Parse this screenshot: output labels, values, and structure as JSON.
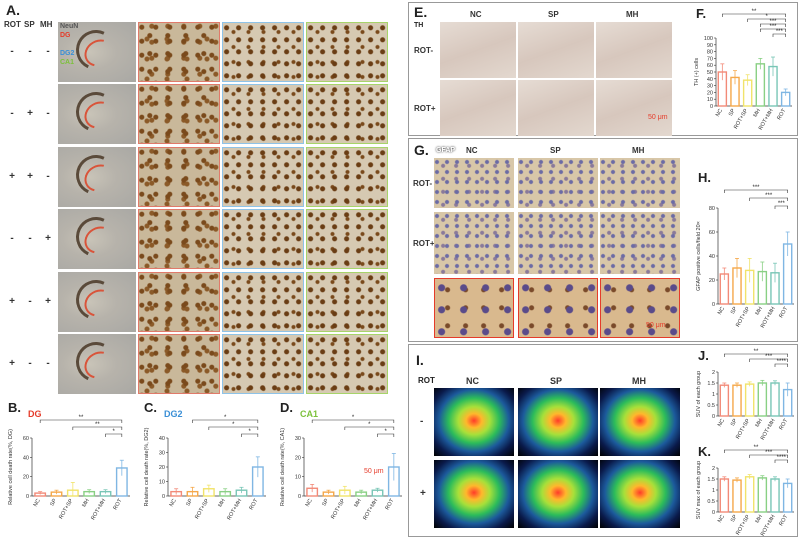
{
  "panelA": {
    "label": "A.",
    "col_headers": [
      "ROT",
      "SP",
      "MH"
    ],
    "rows": [
      {
        "rot": "-",
        "sp": "-",
        "mh": "-"
      },
      {
        "rot": "-",
        "sp": "+",
        "mh": "-"
      },
      {
        "rot": "+",
        "sp": "+",
        "mh": "-"
      },
      {
        "rot": "-",
        "sp": "-",
        "mh": "+"
      },
      {
        "rot": "+",
        "sp": "-",
        "mh": "+"
      },
      {
        "rot": "+",
        "sp": "-",
        "mh": "-"
      }
    ],
    "legend": [
      "NeuN",
      "DG",
      "DG2",
      "CA1"
    ],
    "scale": "50 μm",
    "colors": {
      "DG": "#e53b2a",
      "DG2": "#3a8fd6",
      "CA1": "#7cc13b",
      "NeuN": "#555555"
    }
  },
  "panelE": {
    "label": "E.",
    "stain": "TH",
    "cols": [
      "NC",
      "SP",
      "MH"
    ],
    "rows": [
      "ROT-",
      "ROT+"
    ],
    "scale": "50 μm"
  },
  "panelG": {
    "label": "G.",
    "stain": "GFAP",
    "cols": [
      "NC",
      "SP",
      "MH"
    ],
    "rows": [
      "ROT-",
      "ROT+"
    ],
    "scale": "50 μm"
  },
  "panelI": {
    "label": "I.",
    "row_header": "ROT",
    "cols": [
      "NC",
      "SP",
      "MH"
    ],
    "rows": [
      "-",
      "+"
    ]
  },
  "chart_data": [
    {
      "id": "B",
      "label": "B.",
      "title": "DG",
      "title_color": "#e53b2a",
      "type": "bar",
      "categories": [
        "NC",
        "SP",
        "ROT+SP",
        "MH",
        "ROT+MH",
        "ROT"
      ],
      "values": [
        3,
        4,
        6,
        4.5,
        4.5,
        29
      ],
      "errors": [
        1.5,
        2,
        8,
        2,
        2,
        8
      ],
      "ylabel": "Relative cell death rate(%, DG)",
      "ylim": [
        0,
        60
      ],
      "yticks": [
        0,
        20,
        40,
        60
      ],
      "sig": [
        {
          "from": 0,
          "to": 5,
          "label": "**"
        },
        {
          "from": 2,
          "to": 5,
          "label": "**"
        },
        {
          "from": 4,
          "to": 5,
          "label": "*"
        }
      ]
    },
    {
      "id": "C",
      "label": "C.",
      "title": "DG2",
      "title_color": "#3a8fd6",
      "type": "bar",
      "categories": [
        "NC",
        "SP",
        "ROT+SP",
        "MH",
        "ROT+MH",
        "ROT"
      ],
      "values": [
        3,
        3,
        5,
        3,
        4,
        20
      ],
      "errors": [
        2,
        3,
        2.5,
        2,
        2,
        7
      ],
      "ylabel": "Relative cell death rate(%, DG2)",
      "ylim": [
        0,
        40
      ],
      "yticks": [
        0,
        10,
        20,
        30,
        40
      ],
      "sig": [
        {
          "from": 1,
          "to": 5,
          "label": "*"
        },
        {
          "from": 2,
          "to": 5,
          "label": "*"
        },
        {
          "from": 4,
          "to": 5,
          "label": "*"
        }
      ]
    },
    {
      "id": "D",
      "label": "D.",
      "title": "CA1",
      "title_color": "#7cc13b",
      "type": "bar",
      "categories": [
        "NC",
        "SP",
        "ROT+SP",
        "MH",
        "ROT+MH",
        "ROT"
      ],
      "values": [
        4,
        2,
        3,
        2,
        3,
        15
      ],
      "errors": [
        2,
        1,
        2,
        1,
        1,
        7
      ],
      "ylabel": "Relative cell death rate(%, CA1)",
      "ylim": [
        0,
        30
      ],
      "yticks": [
        0,
        10,
        20,
        30
      ],
      "sig": [
        {
          "from": 0,
          "to": 5,
          "label": "*"
        },
        {
          "from": 2,
          "to": 5,
          "label": "*"
        },
        {
          "from": 4,
          "to": 5,
          "label": "*"
        }
      ]
    },
    {
      "id": "F",
      "label": "F.",
      "title": "",
      "type": "bar",
      "categories": [
        "NC",
        "SP",
        "ROT+SP",
        "MH",
        "ROT+MH",
        "ROT"
      ],
      "values": [
        50,
        42,
        38,
        62,
        58,
        20
      ],
      "errors": [
        12,
        10,
        8,
        8,
        14,
        5
      ],
      "ylabel": "TH (+) cells",
      "ylim": [
        0,
        100
      ],
      "yticks": [
        0,
        10,
        20,
        30,
        40,
        50,
        60,
        70,
        80,
        90,
        100
      ],
      "sig": [
        {
          "from": 0,
          "to": 5,
          "label": "**"
        },
        {
          "from": 2,
          "to": 5,
          "label": "*"
        },
        {
          "from": 3,
          "to": 5,
          "label": "***"
        },
        {
          "from": 3,
          "to": 5,
          "label": "***"
        },
        {
          "from": 4,
          "to": 5,
          "label": "***"
        }
      ]
    },
    {
      "id": "H",
      "label": "H.",
      "title": "",
      "type": "bar",
      "categories": [
        "NC",
        "SP",
        "ROT+SP",
        "MH",
        "ROT+MH",
        "ROT"
      ],
      "values": [
        25,
        30,
        28,
        27,
        26,
        50
      ],
      "errors": [
        5,
        8,
        10,
        8,
        8,
        10
      ],
      "ylabel": "GFAP positive cells/field 20×",
      "ylim": [
        0,
        80
      ],
      "yticks": [
        0,
        20,
        40,
        60,
        80
      ],
      "sig": [
        {
          "from": 0,
          "to": 5,
          "label": "***"
        },
        {
          "from": 2,
          "to": 5,
          "label": "***"
        },
        {
          "from": 4,
          "to": 5,
          "label": "***"
        }
      ]
    },
    {
      "id": "J",
      "label": "J.",
      "title": "",
      "type": "bar",
      "categories": [
        "NC",
        "SP",
        "ROT+SP",
        "MH",
        "ROT+MH",
        "ROT"
      ],
      "values": [
        1.4,
        1.4,
        1.45,
        1.5,
        1.5,
        1.2
      ],
      "errors": [
        0.1,
        0.1,
        0.1,
        0.12,
        0.1,
        0.3
      ],
      "ylabel": "SUV of each group",
      "ylim": [
        0,
        2.0
      ],
      "yticks": [
        0,
        0.5,
        1.0,
        1.5,
        2.0
      ],
      "sig": [
        {
          "from": 0,
          "to": 5,
          "label": "**"
        },
        {
          "from": 2,
          "to": 5,
          "label": "***"
        },
        {
          "from": 4,
          "to": 5,
          "label": "****"
        }
      ]
    },
    {
      "id": "K",
      "label": "K.",
      "title": "",
      "type": "bar",
      "categories": [
        "NC",
        "SP",
        "ROT+SP",
        "MH",
        "ROT+MH",
        "ROT"
      ],
      "values": [
        1.5,
        1.45,
        1.6,
        1.55,
        1.5,
        1.3
      ],
      "errors": [
        0.1,
        0.1,
        0.1,
        0.1,
        0.1,
        0.2
      ],
      "ylabel": "SUV max of each group",
      "ylim": [
        0,
        2.0
      ],
      "yticks": [
        0,
        0.5,
        1.0,
        1.5,
        2.0
      ],
      "sig": [
        {
          "from": 0,
          "to": 5,
          "label": "**"
        },
        {
          "from": 2,
          "to": 5,
          "label": "***"
        },
        {
          "from": 4,
          "to": 5,
          "label": "****"
        }
      ]
    }
  ],
  "bar_colors": [
    "#f28a78",
    "#f5a84a",
    "#f1e36a",
    "#89d084",
    "#79c6b6",
    "#7fb6e3"
  ]
}
